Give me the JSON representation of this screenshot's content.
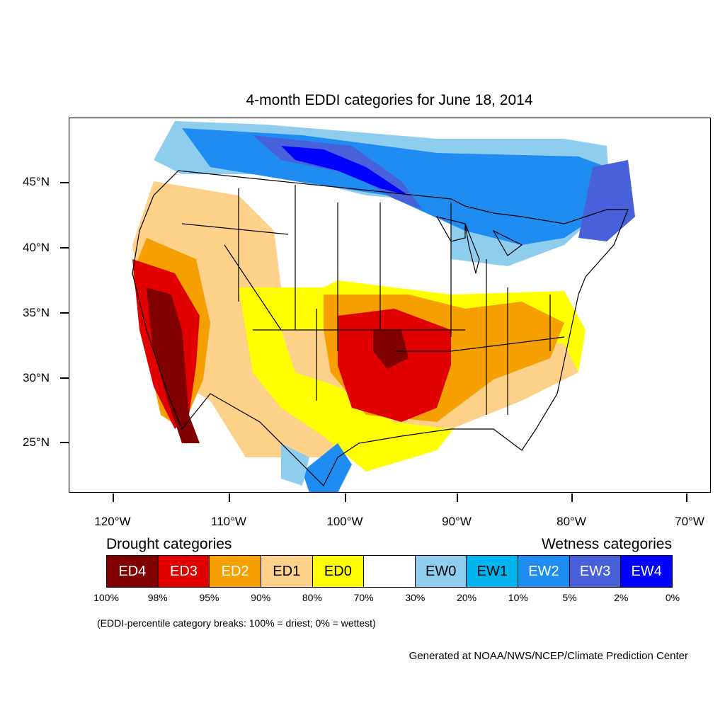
{
  "title": "4-month EDDI categories for June 18, 2014",
  "map": {
    "lat_ticks": [
      "45°N",
      "40°N",
      "35°N",
      "30°N",
      "25°N"
    ],
    "lon_ticks": [
      "120°W",
      "110°W",
      "100°W",
      "90°W",
      "80°W",
      "70°W"
    ]
  },
  "legend": {
    "drought_heading": "Drought categories",
    "wetness_heading": "Wetness categories",
    "categories": [
      {
        "label": "ED4",
        "color": "#800000",
        "text_color": "#ffffff"
      },
      {
        "label": "ED3",
        "color": "#e00000",
        "text_color": "#ffffff"
      },
      {
        "label": "ED2",
        "color": "#f5a000",
        "text_color": "#ffffff"
      },
      {
        "label": "ED1",
        "color": "#fed18a",
        "text_color": "#000000"
      },
      {
        "label": "ED0",
        "color": "#ffff00",
        "text_color": "#000000"
      },
      {
        "label": "",
        "color": "#ffffff",
        "text_color": "#000000"
      },
      {
        "label": "EW0",
        "color": "#8fcdef",
        "text_color": "#000000"
      },
      {
        "label": "EW1",
        "color": "#00b4f0",
        "text_color": "#000000"
      },
      {
        "label": "EW2",
        "color": "#1e8cf0",
        "text_color": "#ffffff"
      },
      {
        "label": "EW3",
        "color": "#4661d9",
        "text_color": "#ffffff"
      },
      {
        "label": "EW4",
        "color": "#0000ff",
        "text_color": "#ffffff"
      }
    ],
    "percent_breaks": [
      "100%",
      "98%",
      "95%",
      "90%",
      "80%",
      "70%",
      "30%",
      "20%",
      "10%",
      "5%",
      "2%",
      "0%"
    ]
  },
  "note": "(EDDI-percentile category breaks: 100% = driest; 0% = wettest)",
  "credit": "Generated at NOAA/NWS/NCEP/Climate Prediction Center"
}
